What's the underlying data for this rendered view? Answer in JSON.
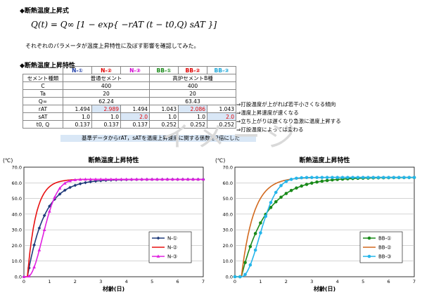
{
  "section1": {
    "title": "◆断熱温度上昇式"
  },
  "formula": {
    "text": "Q(t) = Q∞ [1 − exp{ −rAT (t − t0,Q) sAT }]"
  },
  "note1": "それぞれのパラメータが温度上昇特性に及ぼす影響を確認してみた。",
  "section2": {
    "title": "◆断熱温度上昇特性"
  },
  "table": {
    "header_cols": [
      "N-①",
      "N-②",
      "N-③",
      "BB-①",
      "BB-②",
      "BB-③"
    ],
    "cement_label": "セメント種類",
    "cement_n": "普通セメント",
    "cement_bb": "高炉セメントB種",
    "rows": [
      {
        "label": "C",
        "n": "400",
        "bb": "400"
      },
      {
        "label": "Ta",
        "n": "20",
        "bb": "20"
      },
      {
        "label": "Q∞",
        "n": "62.24",
        "bb": "63.43",
        "comment": "⇒打設温度が上がれば若干小さくなる傾向"
      },
      {
        "label": "rAT",
        "vals": [
          "1.494",
          "2.989",
          "1.494",
          "1.043",
          "2.086",
          "1.043"
        ],
        "comment": "⇒温度上昇速度が速くなる"
      },
      {
        "label": "sAT",
        "vals": [
          "1.0",
          "1.0",
          "2.0",
          "1.0",
          "1.0",
          "2.0"
        ],
        "comment": "⇒立ち上がりは遅くなり急激に温度上昇する"
      },
      {
        "label": "t0, Q",
        "vals": [
          "0.137",
          "0.137",
          "0.137",
          "0.252",
          "0.252",
          "0.252"
        ],
        "comment": "⇒打設温度によっては変わる"
      }
    ],
    "footnote": "基準データからrAT，sATを温度上昇速度に関する係数を2倍にした"
  },
  "watermark": "イメージ",
  "chart_data": [
    {
      "type": "line",
      "title": "断熱温度上昇特性",
      "ylabel": "(℃)",
      "xlabel": "材齢(日)",
      "xlim": [
        0,
        7
      ],
      "ylim": [
        0,
        70
      ],
      "xticks": [
        "0",
        "1",
        "2",
        "3",
        "4",
        "5",
        "6",
        "7"
      ],
      "yticks": [
        "0.0",
        "10.0",
        "20.0",
        "30.0",
        "40.0",
        "50.0",
        "60.0",
        "70.0"
      ],
      "grid": true,
      "legend": "right",
      "series": [
        {
          "name": "N-①",
          "color": "#1f3a7a",
          "marker": "diamond",
          "Qinf": 62.24,
          "r": 1.494,
          "s": 1.0,
          "t0": 0.137
        },
        {
          "name": "N-②",
          "color": "#e81010",
          "marker": "none",
          "Qinf": 62.24,
          "r": 2.989,
          "s": 1.0,
          "t0": 0.137
        },
        {
          "name": "N-③",
          "color": "#e020e0",
          "marker": "triangle",
          "Qinf": 62.24,
          "r": 1.494,
          "s": 2.0,
          "t0": 0.137
        }
      ]
    },
    {
      "type": "line",
      "title": "断熱温度上昇特性",
      "ylabel": "(℃)",
      "xlabel": "材齢(日)",
      "xlim": [
        0,
        7
      ],
      "ylim": [
        0,
        70
      ],
      "xticks": [
        "0",
        "1",
        "2",
        "3",
        "4",
        "5",
        "6",
        "7"
      ],
      "yticks": [
        "0.0",
        "10.0",
        "20.0",
        "30.0",
        "40.0",
        "50.0",
        "60.0",
        "70.0"
      ],
      "grid": true,
      "legend": "right",
      "series": [
        {
          "name": "BB-①",
          "color": "#1a8a1a",
          "marker": "circle",
          "Qinf": 63.43,
          "r": 1.043,
          "s": 1.0,
          "t0": 0.252
        },
        {
          "name": "BB-②",
          "color": "#d2691e",
          "marker": "none",
          "Qinf": 63.43,
          "r": 2.086,
          "s": 1.0,
          "t0": 0.252
        },
        {
          "name": "BB-③",
          "color": "#25b5ea",
          "marker": "circle",
          "Qinf": 63.43,
          "r": 1.043,
          "s": 2.0,
          "t0": 0.252
        }
      ]
    }
  ]
}
